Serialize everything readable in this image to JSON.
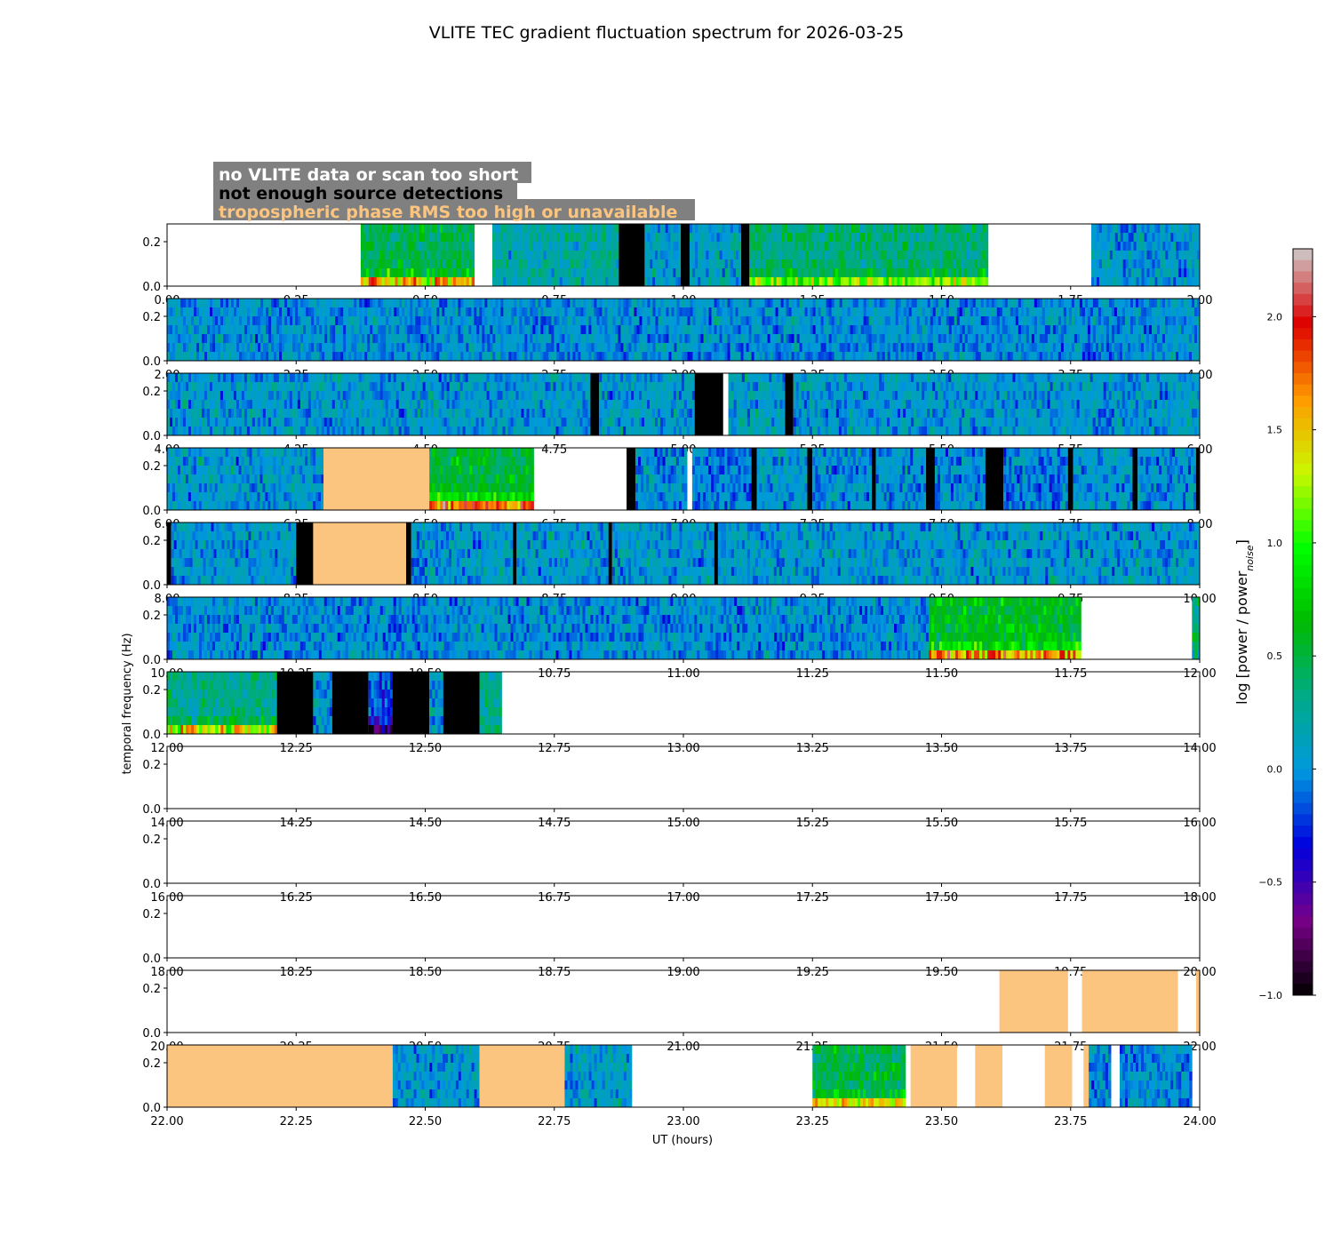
{
  "chart_data": {
    "type": "heatmap",
    "title": "VLITE TEC gradient fluctuation spectrum for 2026-03-25",
    "xlabel": "UT (hours)",
    "ylabel": "temporal frequency (Hz)",
    "colorbar_label_main": "log [power / power",
    "colorbar_label_sub": "noise",
    "colorbar_label_end": "]",
    "colorbar_range": [
      -1.0,
      2.3
    ],
    "colorbar_ticks": [
      "−1.0",
      "−0.5",
      "0.0",
      "0.5",
      "1.0",
      "1.5",
      "2.0"
    ],
    "colorbar_tick_values": [
      -1.0,
      -0.5,
      0.0,
      0.5,
      1.0,
      1.5,
      2.0
    ],
    "ylim": [
      0,
      0.28
    ],
    "ytick_labels": [
      "0.0",
      "0.2"
    ],
    "ytick_values": [
      0.0,
      0.2
    ],
    "legend": [
      {
        "text": "no VLITE data or scan too short",
        "color": "#ffffff"
      },
      {
        "text": "not enough source detections",
        "color": "#000000"
      },
      {
        "text": "tropospheric phase RMS too high or unavailable",
        "color": "#fcc57f"
      }
    ],
    "legend_box_color": "#808080",
    "panels": [
      {
        "xticks": [
          "0.00",
          "0.25",
          "0.50",
          "0.75",
          "1.00",
          "1.25",
          "1.50",
          "1.75",
          "2.00"
        ],
        "segments": [
          {
            "start": 0.375,
            "end": 0.595,
            "kind": "data",
            "level": 0.45,
            "low_boost": 1.2
          },
          {
            "start": 0.63,
            "end": 0.875,
            "kind": "data",
            "level": 0.2
          },
          {
            "start": 0.875,
            "end": 0.925,
            "kind": "nodet"
          },
          {
            "start": 0.925,
            "end": 0.995,
            "kind": "data",
            "level": 0.05
          },
          {
            "start": 0.995,
            "end": 1.012,
            "kind": "nodet"
          },
          {
            "start": 1.012,
            "end": 1.112,
            "kind": "data",
            "level": 0.1
          },
          {
            "start": 1.112,
            "end": 1.128,
            "kind": "nodet"
          },
          {
            "start": 1.128,
            "end": 1.59,
            "kind": "data",
            "level": 0.35,
            "low_boost": 0.9
          },
          {
            "start": 1.79,
            "end": 2.0,
            "kind": "data",
            "level": 0.05
          }
        ]
      },
      {
        "xticks": [
          "2.00",
          "2.25",
          "2.50",
          "2.75",
          "3.00",
          "3.25",
          "3.50",
          "3.75",
          "4.00"
        ],
        "segments": [
          {
            "start": 2.0,
            "end": 4.0,
            "kind": "data",
            "level": 0.0
          }
        ]
      },
      {
        "xticks": [
          "4.00",
          "4.25",
          "4.50",
          "4.75",
          "5.00",
          "5.25",
          "5.50",
          "5.75",
          "6.00"
        ],
        "segments": [
          {
            "start": 4.0,
            "end": 4.82,
            "kind": "data",
            "level": 0.05
          },
          {
            "start": 4.82,
            "end": 4.837,
            "kind": "nodet"
          },
          {
            "start": 4.837,
            "end": 5.022,
            "kind": "data",
            "level": 0.05
          },
          {
            "start": 5.022,
            "end": 5.077,
            "kind": "nodet"
          },
          {
            "start": 5.087,
            "end": 5.197,
            "kind": "data",
            "level": 0.1
          },
          {
            "start": 5.197,
            "end": 5.213,
            "kind": "nodet"
          },
          {
            "start": 5.213,
            "end": 6.0,
            "kind": "data",
            "level": 0.05
          }
        ]
      },
      {
        "xticks": [
          "6.00",
          "6.25",
          "6.50",
          "6.75",
          "7.00",
          "7.25",
          "7.50",
          "7.75",
          "8.00"
        ],
        "segments": [
          {
            "start": 6.0,
            "end": 6.303,
            "kind": "data",
            "level": 0.05
          },
          {
            "start": 6.303,
            "end": 6.508,
            "kind": "trop"
          },
          {
            "start": 6.508,
            "end": 6.71,
            "kind": "data",
            "level": 0.55,
            "low_boost": 1.3
          },
          {
            "start": 6.89,
            "end": 6.907,
            "kind": "nodet"
          },
          {
            "start": 6.907,
            "end": 7.007,
            "kind": "data",
            "level": 0.0
          },
          {
            "start": 7.017,
            "end": 7.132,
            "kind": "data",
            "level": -0.05
          },
          {
            "start": 7.132,
            "end": 7.142,
            "kind": "nodet"
          },
          {
            "start": 7.142,
            "end": 7.24,
            "kind": "data",
            "level": 0.05
          },
          {
            "start": 7.24,
            "end": 7.25,
            "kind": "nodet"
          },
          {
            "start": 7.25,
            "end": 7.365,
            "kind": "data",
            "level": 0.0
          },
          {
            "start": 7.365,
            "end": 7.373,
            "kind": "nodet"
          },
          {
            "start": 7.373,
            "end": 7.47,
            "kind": "data",
            "level": 0.0
          },
          {
            "start": 7.47,
            "end": 7.487,
            "kind": "nodet"
          },
          {
            "start": 7.487,
            "end": 7.585,
            "kind": "data",
            "level": 0.0
          },
          {
            "start": 7.585,
            "end": 7.62,
            "kind": "nodet"
          },
          {
            "start": 7.62,
            "end": 7.745,
            "kind": "data",
            "level": -0.05
          },
          {
            "start": 7.745,
            "end": 7.755,
            "kind": "nodet"
          },
          {
            "start": 7.755,
            "end": 7.87,
            "kind": "data",
            "level": 0.05
          },
          {
            "start": 7.87,
            "end": 7.88,
            "kind": "nodet"
          },
          {
            "start": 7.88,
            "end": 7.993,
            "kind": "data",
            "level": 0.0
          },
          {
            "start": 7.993,
            "end": 8.0,
            "kind": "nodet"
          }
        ]
      },
      {
        "xticks": [
          "8.00",
          "8.25",
          "8.50",
          "8.75",
          "9.00",
          "9.25",
          "9.50",
          "9.75",
          "10.00"
        ],
        "segments": [
          {
            "start": 8.0,
            "end": 8.008,
            "kind": "nodet"
          },
          {
            "start": 8.008,
            "end": 8.25,
            "kind": "data",
            "level": 0.05
          },
          {
            "start": 8.25,
            "end": 8.283,
            "kind": "nodet"
          },
          {
            "start": 8.283,
            "end": 8.463,
            "kind": "trop"
          },
          {
            "start": 8.463,
            "end": 8.473,
            "kind": "nodet"
          },
          {
            "start": 8.473,
            "end": 8.67,
            "kind": "data",
            "level": 0.05
          },
          {
            "start": 8.67,
            "end": 8.677,
            "kind": "nodet"
          },
          {
            "start": 8.677,
            "end": 8.855,
            "kind": "data",
            "level": 0.05
          },
          {
            "start": 8.855,
            "end": 8.862,
            "kind": "nodet"
          },
          {
            "start": 8.862,
            "end": 9.06,
            "kind": "data",
            "level": 0.05
          },
          {
            "start": 9.06,
            "end": 9.067,
            "kind": "nodet"
          },
          {
            "start": 9.067,
            "end": 10.0,
            "kind": "data",
            "level": 0.05
          }
        ]
      },
      {
        "xticks": [
          "10.00",
          "10.25",
          "10.50",
          "10.75",
          "11.00",
          "11.25",
          "11.50",
          "11.75",
          "12.00"
        ],
        "segments": [
          {
            "start": 10.0,
            "end": 11.475,
            "kind": "data",
            "level": 0.0
          },
          {
            "start": 11.475,
            "end": 11.77,
            "kind": "data",
            "level": 0.6,
            "low_boost": 1.2
          },
          {
            "start": 11.985,
            "end": 12.0,
            "kind": "data",
            "level": 0.3
          }
        ]
      },
      {
        "xticks": [
          "12.00",
          "12.25",
          "12.50",
          "12.75",
          "13.00",
          "13.25",
          "13.50",
          "13.75",
          "14.00"
        ],
        "segments": [
          {
            "start": 12.0,
            "end": 12.213,
            "kind": "data",
            "level": 0.3,
            "low_boost": 1.2
          },
          {
            "start": 12.213,
            "end": 12.283,
            "kind": "nodet"
          },
          {
            "start": 12.283,
            "end": 12.32,
            "kind": "data",
            "level": 0.05
          },
          {
            "start": 12.32,
            "end": 12.39,
            "kind": "nodet"
          },
          {
            "start": 12.39,
            "end": 12.437,
            "kind": "data",
            "level": -0.2,
            "low_boost": -0.6
          },
          {
            "start": 12.437,
            "end": 12.508,
            "kind": "nodet"
          },
          {
            "start": 12.508,
            "end": 12.535,
            "kind": "data",
            "level": 0.05
          },
          {
            "start": 12.535,
            "end": 12.605,
            "kind": "nodet"
          },
          {
            "start": 12.605,
            "end": 12.648,
            "kind": "data",
            "level": 0.3
          }
        ]
      },
      {
        "xticks": [
          "14.00",
          "14.25",
          "14.50",
          "14.75",
          "15.00",
          "15.25",
          "15.50",
          "15.75",
          "16.00"
        ],
        "segments": []
      },
      {
        "xticks": [
          "16.00",
          "16.25",
          "16.50",
          "16.75",
          "17.00",
          "17.25",
          "17.50",
          "17.75",
          "18.00"
        ],
        "segments": []
      },
      {
        "xticks": [
          "18.00",
          "18.25",
          "18.50",
          "18.75",
          "19.00",
          "19.25",
          "19.50",
          "19.75",
          "20.00"
        ],
        "segments": []
      },
      {
        "xticks": [
          "20.00",
          "20.25",
          "20.50",
          "20.75",
          "21.00",
          "21.25",
          "21.50",
          "21.75",
          "22.00"
        ],
        "segments": [
          {
            "start": 21.612,
            "end": 21.745,
            "kind": "trop"
          },
          {
            "start": 21.772,
            "end": 21.958,
            "kind": "trop"
          },
          {
            "start": 21.993,
            "end": 22.0,
            "kind": "trop"
          }
        ]
      },
      {
        "xticks": [
          "22.00",
          "22.25",
          "22.50",
          "22.75",
          "23.00",
          "23.25",
          "23.50",
          "23.75",
          "24.00"
        ],
        "segments": [
          {
            "start": 22.0,
            "end": 22.437,
            "kind": "trop"
          },
          {
            "start": 22.437,
            "end": 22.605,
            "kind": "data",
            "level": 0.05
          },
          {
            "start": 22.605,
            "end": 22.77,
            "kind": "trop"
          },
          {
            "start": 22.77,
            "end": 22.9,
            "kind": "data",
            "level": 0.1
          },
          {
            "start": 23.25,
            "end": 23.43,
            "kind": "data",
            "level": 0.45,
            "low_boost": 1.0
          },
          {
            "start": 23.44,
            "end": 23.53,
            "kind": "trop"
          },
          {
            "start": 23.565,
            "end": 23.618,
            "kind": "trop"
          },
          {
            "start": 23.7,
            "end": 23.753,
            "kind": "trop"
          },
          {
            "start": 23.775,
            "end": 23.785,
            "kind": "trop"
          },
          {
            "start": 23.785,
            "end": 23.828,
            "kind": "data",
            "level": 0.0
          },
          {
            "start": 23.845,
            "end": 23.985,
            "kind": "data",
            "level": 0.0
          }
        ]
      }
    ]
  }
}
